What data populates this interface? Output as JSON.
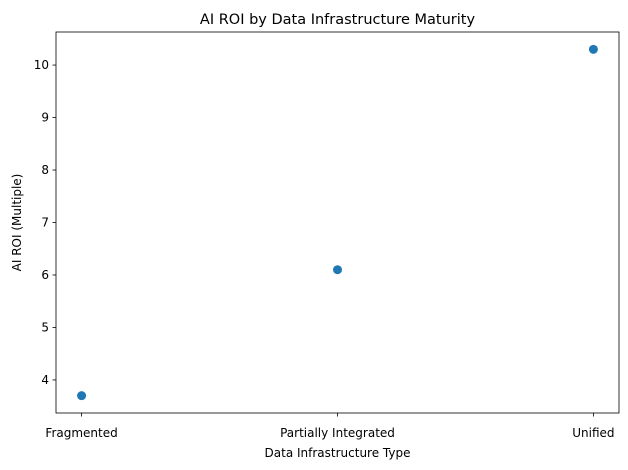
{
  "chart_data": {
    "type": "scatter",
    "title": "AI ROI by Data Infrastructure Maturity",
    "xlabel": "Data Infrastructure Type",
    "ylabel": "AI ROI (Multiple)",
    "categories": [
      "Fragmented",
      "Partially Integrated",
      "Unified"
    ],
    "values": [
      3.7,
      6.1,
      10.3
    ],
    "ylim": [
      3.37,
      10.63
    ],
    "yticks": [
      4,
      5,
      6,
      7,
      8,
      9,
      10
    ],
    "grid": false,
    "marker_color": "#1f77b4"
  }
}
